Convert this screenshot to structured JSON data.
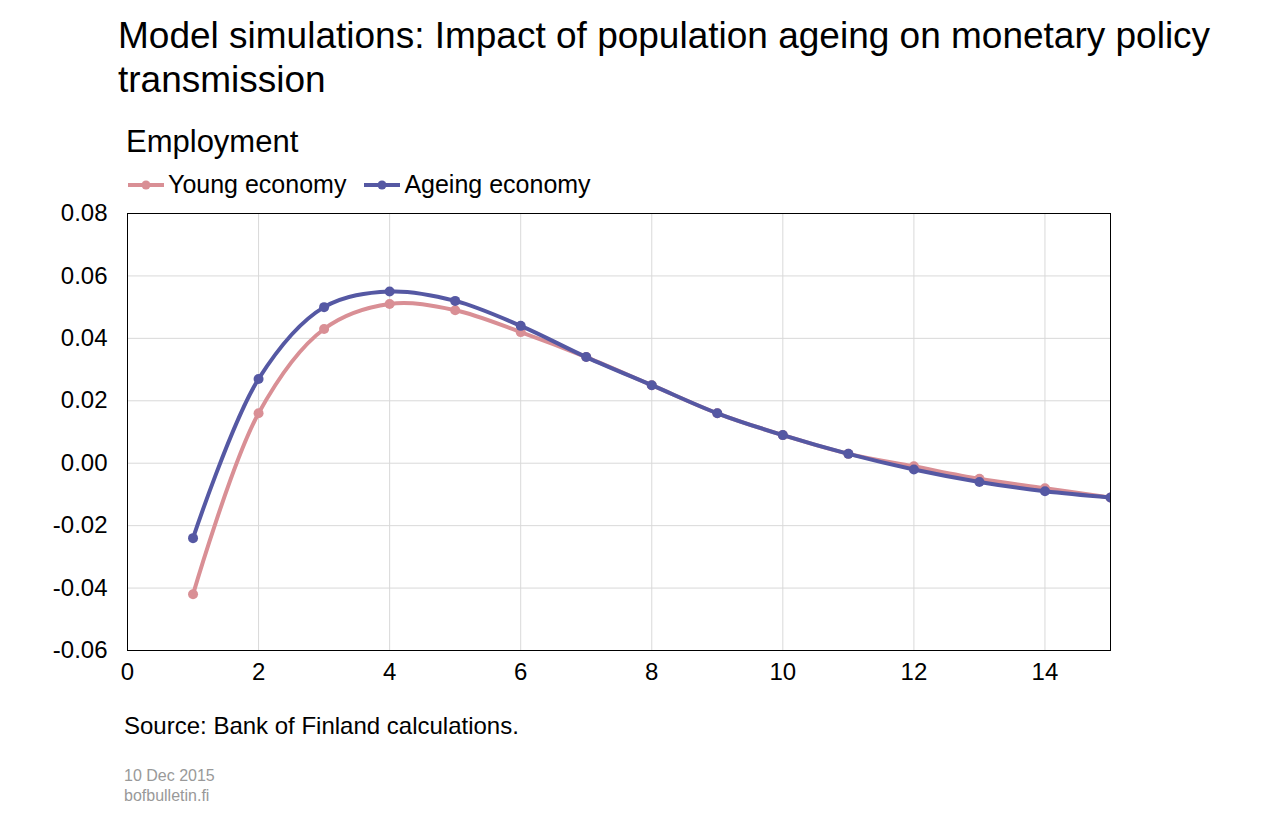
{
  "chart_data": {
    "type": "line",
    "title": "Model simulations: Impact of population ageing on monetary policy transmission",
    "subtitle": "Employment",
    "notes": [
      "Source: Bank of Finland calculations.",
      "10 Dec 2015",
      "bofbulletin.fi"
    ],
    "x": [
      1,
      2,
      3,
      4,
      5,
      6,
      7,
      8,
      9,
      10,
      11,
      12,
      13,
      14,
      15
    ],
    "series": [
      {
        "name": "Young economy",
        "color": "#d98f95",
        "marker": "circle",
        "line_style": "solid",
        "values": [
          -0.042,
          0.016,
          0.043,
          0.051,
          0.049,
          0.042,
          0.034,
          0.025,
          0.016,
          0.009,
          0.003,
          -0.001,
          -0.005,
          -0.008,
          -0.011
        ]
      },
      {
        "name": "Ageing economy",
        "color": "#5558a3",
        "marker": "circle",
        "line_style": "solid",
        "values": [
          -0.024,
          0.027,
          0.05,
          0.055,
          0.052,
          0.044,
          0.034,
          0.025,
          0.016,
          0.009,
          0.003,
          -0.002,
          -0.006,
          -0.009,
          -0.011
        ]
      }
    ],
    "xlim": [
      0,
      15
    ],
    "xticks": [
      0,
      2,
      4,
      6,
      8,
      10,
      12,
      14
    ],
    "ylim": [
      -0.06,
      0.08
    ],
    "yticks": [
      -0.06,
      -0.04,
      -0.02,
      {
        "value": 0,
        "label": "0.00"
      },
      0.02,
      0.04,
      0.06,
      0.08
    ],
    "grid": true,
    "legend": "top-left"
  }
}
